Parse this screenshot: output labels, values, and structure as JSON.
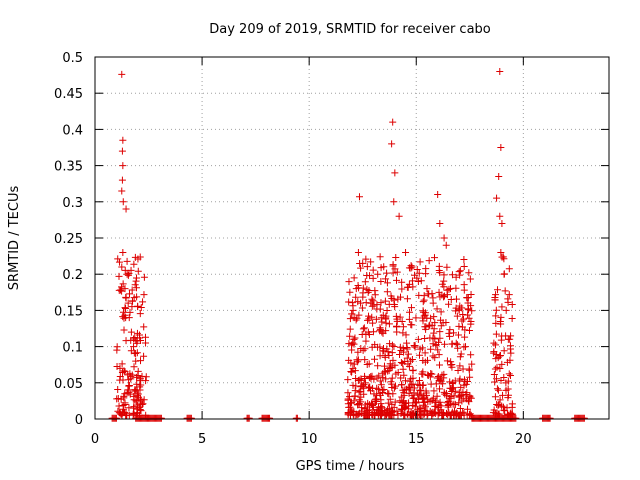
{
  "chart_data": {
    "type": "scatter",
    "title": "Day 209 of 2019, SRMTID for receiver cabo",
    "xlabel": "GPS time / hours",
    "ylabel": "SRMTID / TECUs",
    "xlim": [
      0,
      24
    ],
    "ylim": [
      0,
      0.5
    ],
    "xticks": [
      0,
      5,
      10,
      15,
      20
    ],
    "yticks": [
      0,
      0.05,
      0.1,
      0.15,
      0.2,
      0.25,
      0.3,
      0.35,
      0.4,
      0.45,
      0.5
    ],
    "grid": true,
    "marker": "+",
    "color": "#dd0000",
    "clusters": [
      {
        "x_range": [
          1.0,
          2.4
        ],
        "count": 160
      },
      {
        "x_range": [
          11.8,
          13.5
        ],
        "count": 250
      },
      {
        "x_range": [
          13.5,
          15.5
        ],
        "count": 280
      },
      {
        "x_range": [
          15.5,
          17.6
        ],
        "count": 260
      },
      {
        "x_range": [
          18.6,
          19.5
        ],
        "count": 90
      }
    ],
    "points": [
      [
        1.25,
        0.476
      ],
      [
        1.3,
        0.385
      ],
      [
        1.28,
        0.37
      ],
      [
        1.3,
        0.35
      ],
      [
        1.28,
        0.33
      ],
      [
        1.25,
        0.315
      ],
      [
        1.32,
        0.3
      ],
      [
        1.45,
        0.29
      ],
      [
        1.3,
        0.23
      ],
      [
        1.25,
        0.21
      ],
      [
        1.5,
        0.2
      ],
      [
        1.4,
        0.18
      ],
      [
        1.55,
        0.16
      ],
      [
        1.6,
        0.14
      ],
      [
        1.7,
        0.12
      ],
      [
        1.8,
        0.1
      ],
      [
        1.9,
        0.08
      ],
      [
        2.0,
        0.06
      ],
      [
        2.1,
        0.04
      ],
      [
        2.2,
        0.02
      ],
      [
        12.1,
        0.195
      ],
      [
        12.3,
        0.23
      ],
      [
        12.5,
        0.215
      ],
      [
        12.2,
        0.18
      ],
      [
        12.4,
        0.16
      ],
      [
        12.1,
        0.14
      ],
      [
        12.35,
        0.307
      ],
      [
        13.2,
        0.2
      ],
      [
        13.9,
        0.41
      ],
      [
        13.85,
        0.38
      ],
      [
        14.0,
        0.34
      ],
      [
        13.95,
        0.3
      ],
      [
        14.2,
        0.28
      ],
      [
        14.5,
        0.23
      ],
      [
        14.8,
        0.21
      ],
      [
        15.1,
        0.19
      ],
      [
        15.5,
        0.18
      ],
      [
        16.0,
        0.31
      ],
      [
        16.1,
        0.27
      ],
      [
        16.3,
        0.25
      ],
      [
        16.4,
        0.24
      ],
      [
        16.6,
        0.18
      ],
      [
        17.0,
        0.15
      ],
      [
        17.3,
        0.1
      ],
      [
        18.9,
        0.48
      ],
      [
        18.95,
        0.375
      ],
      [
        18.85,
        0.335
      ],
      [
        18.75,
        0.305
      ],
      [
        18.9,
        0.28
      ],
      [
        19.0,
        0.27
      ],
      [
        18.95,
        0.23
      ],
      [
        19.1,
        0.2
      ],
      [
        19.2,
        0.15
      ],
      [
        19.3,
        0.11
      ],
      [
        19.4,
        0.06
      ]
    ],
    "zero_segments": [
      [
        0.8,
        1.05
      ],
      [
        1.9,
        3.1
      ],
      [
        4.3,
        4.5
      ],
      [
        7.1,
        7.2
      ],
      [
        7.8,
        8.2
      ],
      [
        9.4,
        9.5
      ],
      [
        17.6,
        19.7
      ],
      [
        20.9,
        21.3
      ],
      [
        22.4,
        22.9
      ]
    ]
  }
}
